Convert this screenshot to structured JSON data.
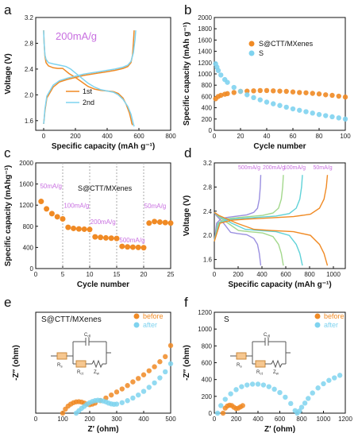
{
  "panels": [
    {
      "id": "a",
      "letter": "a",
      "chart_data": {
        "type": "line",
        "annotation": "200mA/g",
        "xlabel": "Specific capacity (mAh g⁻¹)",
        "ylabel": "Voltage (V)",
        "xlim": [
          -50,
          800
        ],
        "ylim": [
          1.45,
          3.2
        ],
        "xticks": [
          0,
          200,
          400,
          600,
          800
        ],
        "yticks": [
          1.6,
          2.0,
          2.4,
          2.8,
          3.2
        ],
        "yticklabels": [
          "1.6",
          "2.0",
          "2.4",
          "2.8",
          "3.2"
        ],
        "series": [
          {
            "name": "1st",
            "color": "#f08a24",
            "x": [
              0,
              3,
              8,
              15,
              30,
              60,
              90,
              120,
              160,
              200,
              240,
              280,
              320,
              360,
              400,
              440,
              470,
              500,
              520,
              540,
              550,
              555,
              560
            ],
            "y": [
              3.0,
              2.8,
              2.6,
              2.5,
              2.45,
              2.42,
              2.41,
              2.41,
              2.33,
              2.27,
              2.2,
              2.13,
              2.09,
              2.07,
              2.06,
              2.05,
              2.02,
              1.95,
              1.85,
              1.72,
              1.62,
              1.56,
              1.53
            ],
            "x2": [
              0,
              3,
              8,
              20,
              60,
              100,
              150,
              200,
              250,
              300,
              350,
              400,
              450,
              500,
              530,
              550,
              560,
              565,
              570
            ],
            "y2": [
              1.55,
              1.62,
              1.75,
              1.95,
              2.12,
              2.2,
              2.24,
              2.27,
              2.3,
              2.32,
              2.34,
              2.36,
              2.38,
              2.41,
              2.44,
              2.5,
              2.62,
              2.8,
              3.0
            ]
          },
          {
            "name": "2nd",
            "color": "#7fd3ef",
            "x": [
              0,
              3,
              8,
              15,
              30,
              60,
              100,
              140,
              170,
              200,
              240,
              280,
              320,
              360,
              400,
              440,
              470,
              500,
              530,
              550,
              560,
              565,
              570
            ],
            "y": [
              3.0,
              2.8,
              2.62,
              2.55,
              2.5,
              2.48,
              2.46,
              2.44,
              2.4,
              2.34,
              2.26,
              2.18,
              2.12,
              2.08,
              2.06,
              2.04,
              2.0,
              1.93,
              1.82,
              1.7,
              1.6,
              1.55,
              1.51
            ],
            "x2": [
              0,
              3,
              8,
              20,
              60,
              100,
              150,
              200,
              250,
              300,
              350,
              400,
              450,
              500,
              530,
              550,
              565,
              575,
              580
            ],
            "y2": [
              1.55,
              1.62,
              1.78,
              1.98,
              2.15,
              2.22,
              2.26,
              2.29,
              2.32,
              2.34,
              2.36,
              2.38,
              2.4,
              2.43,
              2.46,
              2.52,
              2.65,
              2.85,
              3.0
            ]
          }
        ]
      }
    },
    {
      "id": "b",
      "letter": "b",
      "chart_data": {
        "type": "scatter",
        "xlabel": "Cycle number",
        "ylabel": "Specific capacity (mAh g⁻¹)",
        "xlim": [
          0,
          100
        ],
        "ylim": [
          0,
          2000
        ],
        "xticks": [
          0,
          20,
          40,
          60,
          80,
          100
        ],
        "yticks": [
          0,
          200,
          400,
          600,
          800,
          1000,
          1200,
          1400,
          1600,
          1800,
          2000
        ],
        "series": [
          {
            "name": "S@CTT/MXenes",
            "color": "#f08a24",
            "x": [
              1,
              3,
              5,
              8,
              10,
              15,
              20,
              25,
              30,
              35,
              40,
              45,
              50,
              55,
              60,
              65,
              70,
              75,
              80,
              85,
              90,
              95,
              100
            ],
            "y": [
              560,
              600,
              620,
              640,
              650,
              670,
              690,
              695,
              700,
              705,
              705,
              700,
              695,
              690,
              680,
              670,
              665,
              655,
              645,
              630,
              620,
              605,
              590
            ]
          },
          {
            "name": "S",
            "color": "#7fd3ef",
            "x": [
              1,
              2,
              3,
              5,
              8,
              10,
              15,
              20,
              25,
              30,
              35,
              40,
              45,
              50,
              55,
              60,
              65,
              70,
              75,
              80,
              85,
              90,
              95,
              100
            ],
            "y": [
              1180,
              1120,
              1060,
              980,
              900,
              850,
              760,
              690,
              630,
              580,
              540,
              500,
              470,
              440,
              410,
              380,
              355,
              330,
              305,
              280,
              260,
              240,
              220,
              200
            ]
          }
        ]
      }
    },
    {
      "id": "c",
      "letter": "c",
      "chart_data": {
        "type": "scatter",
        "title": "S@CTT/MXenes",
        "xlabel": "Cycle number",
        "ylabel": "Specific capacity (mAhg⁻¹)",
        "xlim": [
          0,
          25
        ],
        "ylim": [
          0,
          2000
        ],
        "xticks": [
          0,
          5,
          10,
          15,
          20,
          25
        ],
        "yticks": [
          0,
          400,
          800,
          1200,
          1600,
          2000
        ],
        "dashed_x": [
          5,
          10,
          15,
          20
        ],
        "rate_labels": [
          {
            "text": "50mA/g",
            "x": 0.8,
            "y": 1520
          },
          {
            "text": "100mA/g",
            "x": 5.2,
            "y": 1150
          },
          {
            "text": "200mA/g",
            "x": 10.1,
            "y": 840
          },
          {
            "text": "500mA/g",
            "x": 15.5,
            "y": 500
          },
          {
            "text": "50mA/g",
            "x": 20.1,
            "y": 1140
          }
        ],
        "series": [
          {
            "name": "",
            "color": "#f08a24",
            "x": [
              1,
              2,
              3,
              4,
              5,
              6,
              7,
              8,
              9,
              10,
              11,
              12,
              13,
              14,
              15,
              16,
              17,
              18,
              19,
              20,
              21,
              22,
              23,
              24,
              25
            ],
            "y": [
              1270,
              1130,
              1040,
              980,
              940,
              780,
              760,
              750,
              745,
              740,
              600,
              590,
              580,
              575,
              570,
              420,
              410,
              405,
              400,
              395,
              860,
              890,
              880,
              870,
              860
            ]
          }
        ]
      }
    },
    {
      "id": "d",
      "letter": "d",
      "chart_data": {
        "type": "line",
        "xlabel": "Specific capacity (mAh g⁻¹)",
        "ylabel": "Voltage (V)",
        "xlim": [
          0,
          1100
        ],
        "ylim": [
          1.45,
          3.2
        ],
        "xticks": [
          0,
          200,
          400,
          600,
          800,
          1000
        ],
        "yticks": [
          1.6,
          2.0,
          2.4,
          2.8,
          3.2
        ],
        "yticklabels": [
          "1.6",
          "2.0",
          "2.4",
          "2.8",
          "3.2"
        ],
        "curve_labels": [
          "500mA/g",
          "200mA/g",
          "100mA/g",
          "50mA/g"
        ],
        "series": [
          {
            "name": "500mA/g",
            "color": "#9a8fe0",
            "cap": 390,
            "plateau_ch": 2.28,
            "plateau_dis": 2.05
          },
          {
            "name": "200mA/g",
            "color": "#a3d88c",
            "cap": 580,
            "plateau_ch": 2.27,
            "plateau_dis": 2.08
          },
          {
            "name": "100mA/g",
            "color": "#5fd2d8",
            "cap": 740,
            "plateau_ch": 2.26,
            "plateau_dis": 2.1
          },
          {
            "name": "50mA/g",
            "color": "#f08a24",
            "cap": 950,
            "plateau_ch": 2.25,
            "plateau_dis": 2.1
          }
        ]
      }
    },
    {
      "id": "e",
      "letter": "e",
      "chart_data": {
        "type": "scatter",
        "title": "S@CTT/MXenes",
        "xlabel": "Z′ (ohm)",
        "ylabel": "-Z″ (ohm)",
        "xlim": [
          0,
          500
        ],
        "ylim": [
          0,
          500
        ],
        "xticks": [
          0,
          100,
          200,
          300,
          400,
          500
        ],
        "yticks": [],
        "series": [
          {
            "name": "before",
            "color": "#f08a24",
            "x": [
              100,
              110,
              120,
              130,
              140,
              150,
              160,
              170,
              180,
              190,
              200,
              210,
              220,
              240,
              260,
              280,
              300,
              320,
              340,
              360,
              380,
              400,
              420,
              440,
              460,
              480,
              500
            ],
            "y": [
              0,
              20,
              35,
              45,
              52,
              56,
              57,
              55,
              50,
              45,
              42,
              45,
              50,
              62,
              75,
              90,
              105,
              120,
              137,
              155,
              172,
              190,
              210,
              230,
              255,
              280,
              335
            ]
          },
          {
            "name": "after",
            "color": "#7fd3ef",
            "x": [
              150,
              160,
              170,
              180,
              190,
              200,
              210,
              220,
              230,
              240,
              250,
              260,
              270,
              280,
              290,
              300,
              320,
              340,
              360,
              380,
              400,
              420,
              440,
              460,
              480,
              500
            ],
            "y": [
              0,
              12,
              24,
              34,
              44,
              52,
              58,
              62,
              64,
              63,
              60,
              56,
              50,
              46,
              44,
              45,
              52,
              62,
              75,
              90,
              108,
              128,
              150,
              175,
              205,
              245
            ]
          }
        ],
        "circuit_labels": [
          "Cₛₗ",
          "Rₛ",
          "Rct",
          "Zw"
        ]
      }
    },
    {
      "id": "f",
      "letter": "f",
      "chart_data": {
        "type": "scatter",
        "title": "S",
        "xlabel": "Z′ (ohm)",
        "ylabel": "-Z″ (ohm)",
        "xlim": [
          0,
          1200
        ],
        "ylim": [
          0,
          1200
        ],
        "xticks": [
          0,
          200,
          400,
          600,
          800,
          1000,
          1200
        ],
        "yticks": [
          0,
          200,
          400,
          600,
          800,
          1000,
          1200
        ],
        "series": [
          {
            "name": "before",
            "color": "#f08a24",
            "x": [
              80,
              100,
              120,
              140,
              160,
              180,
              200,
              220,
              240,
              260
            ],
            "y": [
              0,
              60,
              85,
              95,
              90,
              70,
              55,
              60,
              75,
              90
            ]
          },
          {
            "name": "after",
            "color": "#7fd3ef",
            "x": [
              30,
              60,
              100,
              150,
              200,
              250,
              300,
              350,
              400,
              450,
              500,
              550,
              600,
              650,
              700,
              740,
              760,
              780,
              800,
              830,
              860,
              900,
              950,
              1000,
              1050,
              1100,
              1150
            ],
            "y": [
              0,
              90,
              165,
              230,
              280,
              315,
              335,
              345,
              345,
              335,
              315,
              285,
              245,
              190,
              115,
              30,
              0,
              25,
              70,
              120,
              175,
              240,
              300,
              350,
              390,
              420,
              450
            ]
          }
        ],
        "circuit_labels": [
          "Cₛₗ",
          "Rₛ",
          "Rct",
          "Zw"
        ]
      }
    }
  ],
  "texts": {
    "a_anno": "200mA/g",
    "a_leg1": "1st",
    "a_leg2": "2nd",
    "b_leg1": "S@CTT/MXenes",
    "b_leg2": "S",
    "c_title": "S@CTT/MXenes",
    "e_title": "S@CTT/MXenes",
    "e_leg1": "before",
    "e_leg2": "after",
    "f_title": "S",
    "f_leg1": "before",
    "f_leg2": "after",
    "cdl": "C",
    "cdl_sub": "dl",
    "rs": "R",
    "rs_sub": "s",
    "rct": "R",
    "rct_sub": "ct",
    "zw": "Z",
    "zw_sub": "w"
  }
}
